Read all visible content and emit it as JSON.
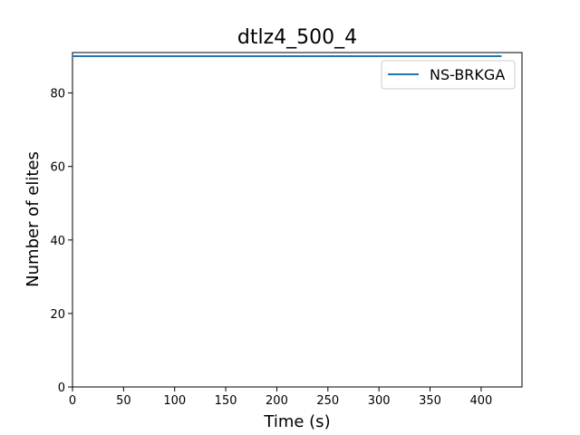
{
  "chart_data": {
    "type": "line",
    "title": "dtlz4_500_4",
    "xlabel": "Time (s)",
    "ylabel": "Number of elites",
    "xlim": [
      0,
      440
    ],
    "ylim": [
      0,
      91
    ],
    "xticks": [
      0,
      50,
      100,
      150,
      200,
      250,
      300,
      350,
      400
    ],
    "yticks": [
      0,
      20,
      40,
      60,
      80
    ],
    "grid": false,
    "legend_position": "top-right",
    "series": [
      {
        "name": "NS-BRKGA",
        "color": "#1f77b4",
        "x": [
          0,
          420
        ],
        "y": [
          90,
          90
        ]
      }
    ]
  }
}
